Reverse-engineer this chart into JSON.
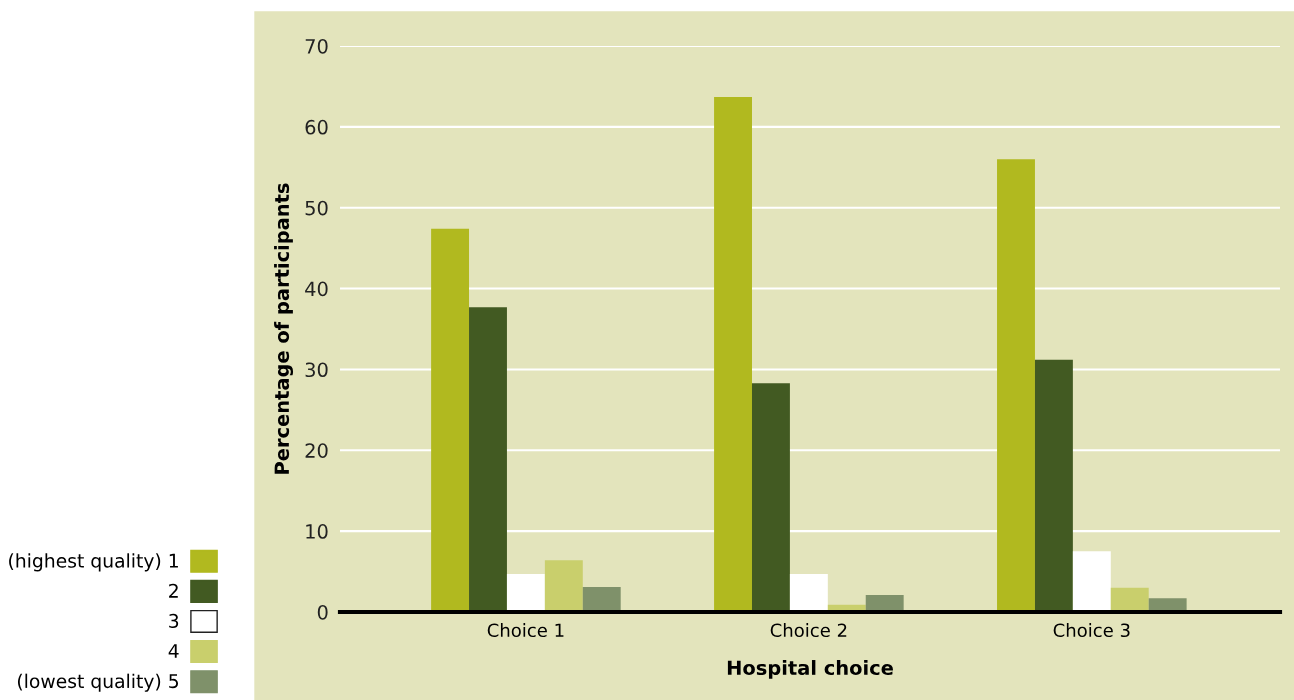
{
  "chart_data": {
    "type": "bar",
    "xlabel": "Hospital choice",
    "ylabel": "Percentage of participants",
    "categories": [
      "Choice 1",
      "Choice 2",
      "Choice 3"
    ],
    "series": [
      {
        "name": "(highest quality) 1",
        "color": "#b1b91f",
        "values": [
          47.4,
          63.7,
          56.0
        ]
      },
      {
        "name": "2",
        "color": "#425a22",
        "values": [
          37.7,
          28.3,
          31.2
        ]
      },
      {
        "name": "3",
        "color": "#ffffff",
        "values": [
          4.7,
          4.7,
          7.5
        ]
      },
      {
        "name": "4",
        "color": "#c9cf6c",
        "values": [
          6.4,
          0.9,
          3.0
        ]
      },
      {
        "name": "(lowest quality) 5",
        "color": "#7f916a",
        "values": [
          3.1,
          2.1,
          1.7
        ]
      }
    ],
    "ylim": [
      0,
      70
    ],
    "yticks": [
      0,
      10,
      20,
      30,
      40,
      50,
      60,
      70
    ],
    "grid": "y",
    "legend": "bottom left"
  }
}
